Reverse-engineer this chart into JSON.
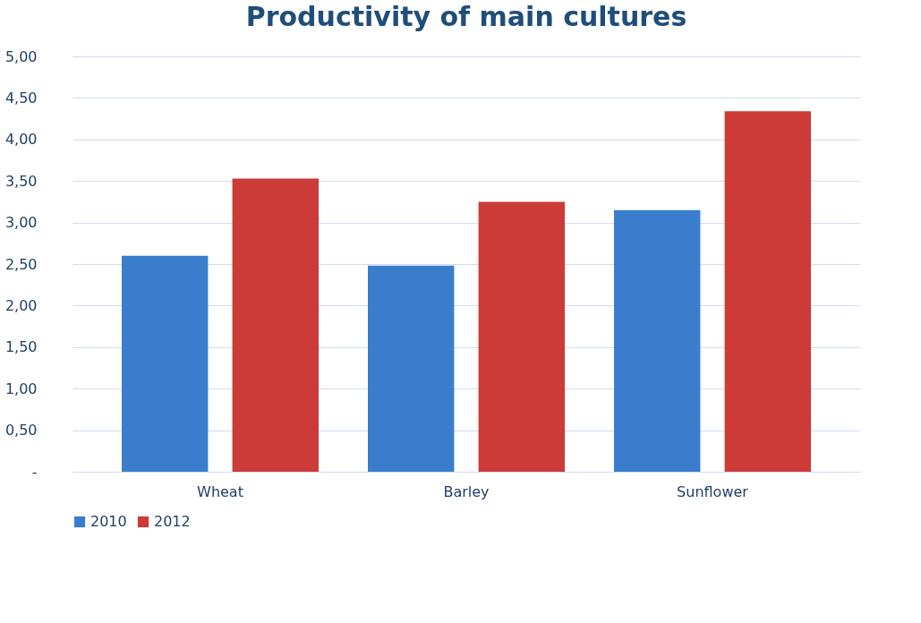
{
  "chart_data": {
    "type": "bar",
    "title": "Productivity of main cultures",
    "categories": [
      "Wheat",
      "Barley",
      "Sunflower"
    ],
    "series": [
      {
        "name": "2010",
        "color": "#3a7dcc",
        "values": [
          2.6,
          2.48,
          3.15
        ]
      },
      {
        "name": "2012",
        "color": "#cc3b38",
        "values": [
          3.53,
          3.25,
          4.34
        ]
      }
    ],
    "ylim": [
      0,
      5
    ],
    "yticks": [
      {
        "value": 0,
        "label": "-"
      },
      {
        "value": 0.5,
        "label": "0,50"
      },
      {
        "value": 1,
        "label": "1,00"
      },
      {
        "value": 1.5,
        "label": "1,50"
      },
      {
        "value": 2,
        "label": "2,00"
      },
      {
        "value": 2.5,
        "label": "2,50"
      },
      {
        "value": 3,
        "label": "3,00"
      },
      {
        "value": 3.5,
        "label": "3,50"
      },
      {
        "value": 4,
        "label": "4,00"
      },
      {
        "value": 4.5,
        "label": "4,50"
      },
      {
        "value": 5,
        "label": "5,00"
      }
    ],
    "grid": "y",
    "legend": "bottom"
  }
}
